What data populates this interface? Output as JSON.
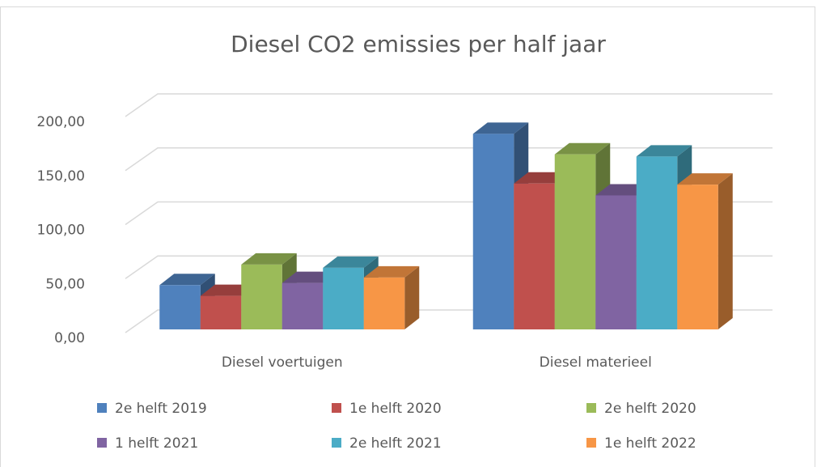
{
  "chart_data": {
    "type": "bar3d",
    "title": "Diesel CO2 emissies per half jaar",
    "categories": [
      "Diesel voertuigen",
      "Diesel materieel"
    ],
    "series": [
      {
        "name": "2e helft 2019",
        "color": "#4f81bd",
        "values": [
          41,
          181
        ]
      },
      {
        "name": "1e helft 2020",
        "color": "#c0504d",
        "values": [
          31,
          135
        ]
      },
      {
        "name": "2e helft 2020",
        "color": "#9bbb59",
        "values": [
          60,
          162
        ]
      },
      {
        "name": "1 helft 2021",
        "color": "#8064a2",
        "values": [
          43,
          124
        ]
      },
      {
        "name": "2e helft 2021",
        "color": "#4bacc6",
        "values": [
          57,
          160
        ]
      },
      {
        "name": "1e helft 2022",
        "color": "#f79646",
        "values": [
          48,
          134
        ]
      }
    ],
    "ylim": [
      0,
      200
    ],
    "yticks": [
      {
        "value": 0,
        "label": "0,00"
      },
      {
        "value": 50,
        "label": "50,00"
      },
      {
        "value": 100,
        "label": "100,00"
      },
      {
        "value": 150,
        "label": "150,00"
      },
      {
        "value": 200,
        "label": "200,00"
      }
    ],
    "grid": true,
    "legend": "bottom"
  }
}
